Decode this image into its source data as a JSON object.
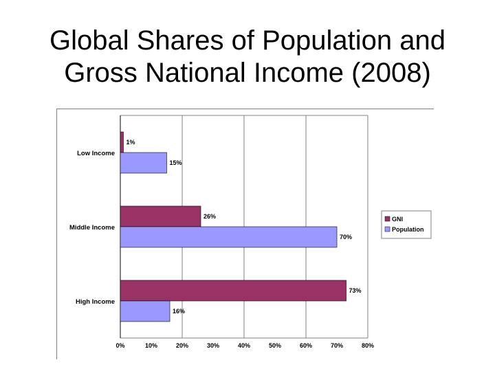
{
  "title_line1": "Global Shares of Population and",
  "title_line2": "Gross National Income  (2008)",
  "chart_data": {
    "type": "bar",
    "orientation": "horizontal",
    "categories": [
      "Low Income",
      "Middle Income",
      "High Income"
    ],
    "series": [
      {
        "name": "GNI",
        "values": [
          1,
          26,
          73
        ],
        "labels": [
          "1%",
          "26%",
          "73%"
        ],
        "color": "#993366"
      },
      {
        "name": "Population",
        "values": [
          15,
          70,
          16
        ],
        "labels": [
          "15%",
          "70%",
          "16%"
        ],
        "color": "#9999ff"
      }
    ],
    "xlim": [
      0,
      80
    ],
    "xticks": [
      "0%",
      "10%",
      "20%",
      "30%",
      "40%",
      "50%",
      "60%",
      "70%",
      "80%"
    ],
    "grid": "vertical major gridlines",
    "legend": "right"
  }
}
